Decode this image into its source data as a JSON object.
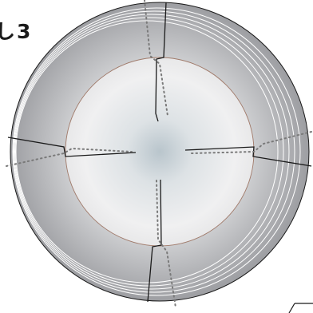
{
  "figure": {
    "label": "し3"
  },
  "colors": {
    "outer_zone_edge": "#9b9ba0",
    "outer_zone_mid": "#c9cacd",
    "inner_zone_edge": "#f0f0f1",
    "center_glow": "#b7c3ca",
    "thin_ring": "#a07a6a",
    "concentric_rings": "#ffffff",
    "solid_line": "#1a1a1a",
    "dotted_line": "#7a7a7a"
  }
}
